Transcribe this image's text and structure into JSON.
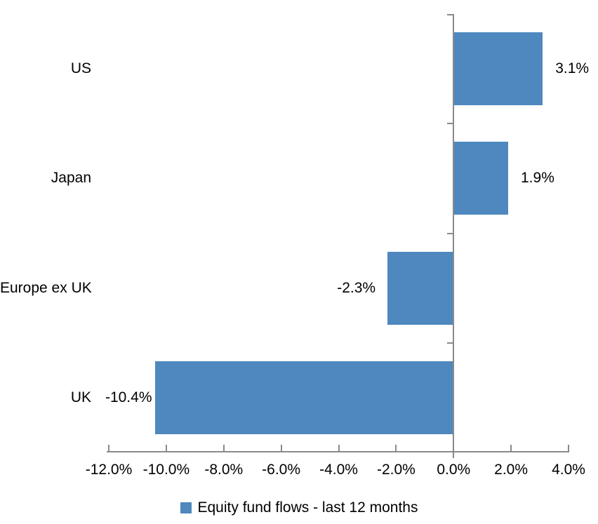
{
  "chart_data": {
    "type": "bar",
    "orientation": "horizontal",
    "title": "",
    "categories": [
      "US",
      "Japan",
      "Europe ex UK",
      "UK"
    ],
    "values": [
      3.1,
      1.9,
      -2.3,
      -10.4
    ],
    "value_labels": [
      "3.1%",
      "1.9%",
      "-2.3%",
      "-10.4%"
    ],
    "legend": "Equity fund flows - last 12 months",
    "legend_position": "bottom",
    "xlim": [
      -12,
      4
    ],
    "x_tick_values": [
      -12,
      -10,
      -8,
      -6,
      -4,
      -2,
      0,
      2,
      4
    ],
    "x_tick_labels": [
      "-12.0%",
      "-10.0%",
      "-8.0%",
      "-6.0%",
      "-4.0%",
      "-2.0%",
      "0.0%",
      "2.0%",
      "4.0%"
    ],
    "grid": false,
    "colors": {
      "bar": "#4E88BE",
      "axis": "#8A8A8A",
      "text": "#000000",
      "background": "#FFFFFF"
    }
  }
}
